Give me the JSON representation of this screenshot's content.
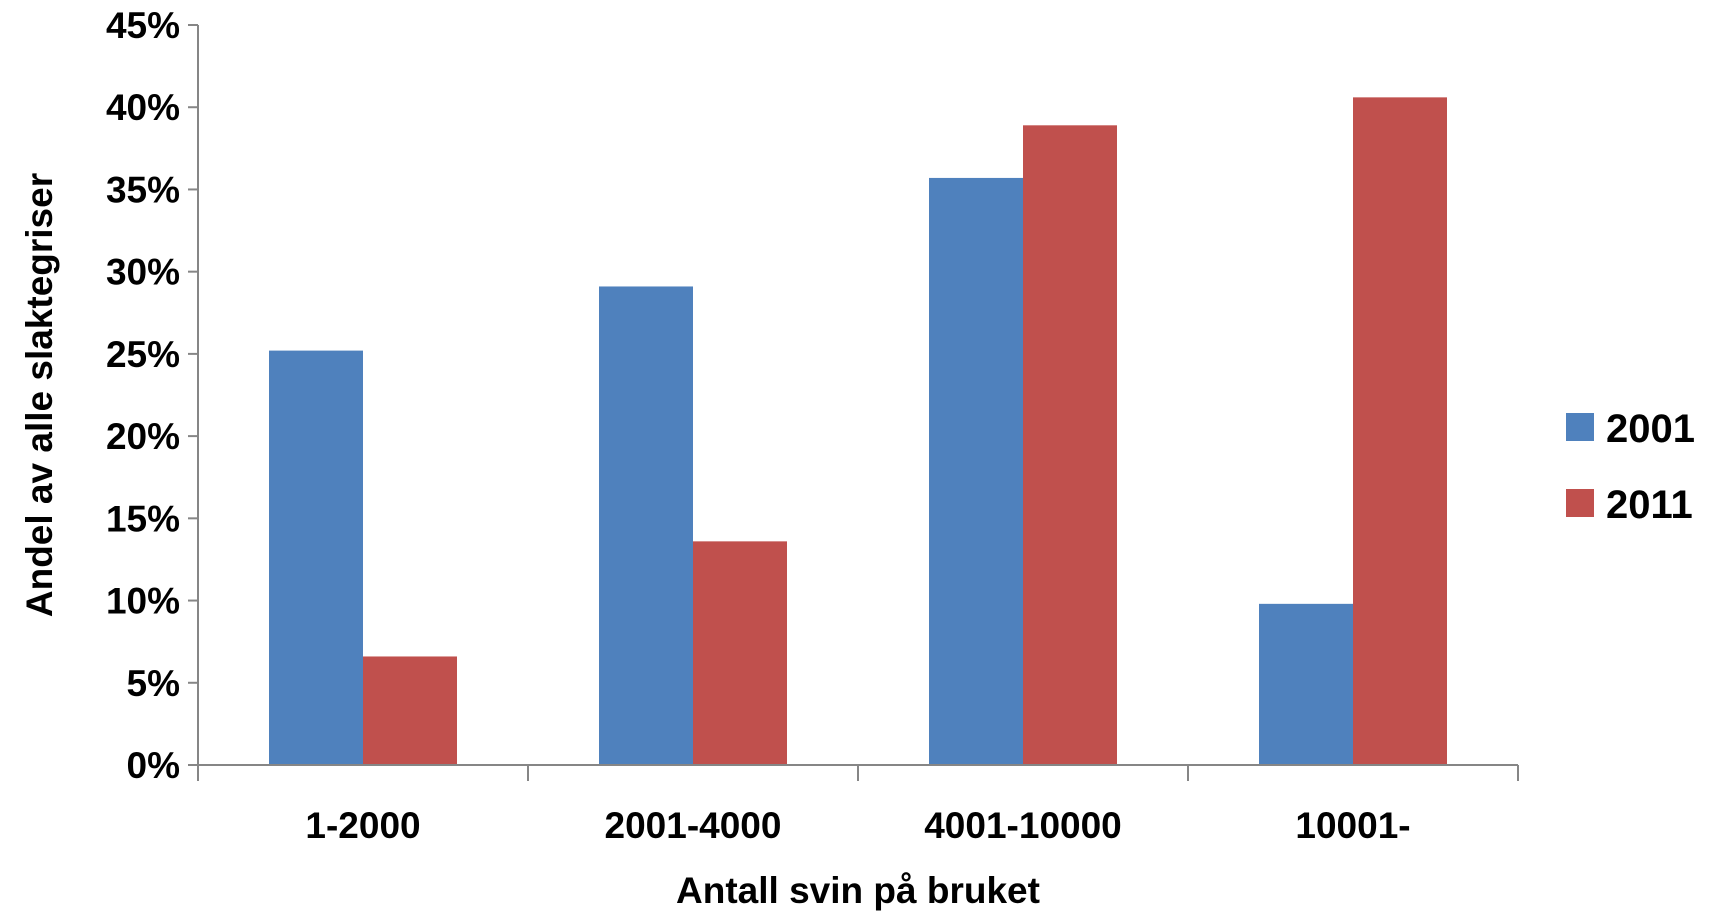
{
  "chart_data": {
    "type": "bar",
    "categories": [
      "1-2000",
      "2001-4000",
      "4001-10000",
      "10001-"
    ],
    "series": [
      {
        "name": "2001",
        "values": [
          25.2,
          29.1,
          35.7,
          9.8
        ],
        "color": "#4F81BD"
      },
      {
        "name": "2011",
        "values": [
          6.6,
          13.6,
          38.9,
          40.6
        ],
        "color": "#C0504D"
      }
    ],
    "yticks": [
      "0%",
      "5%",
      "10%",
      "15%",
      "20%",
      "25%",
      "30%",
      "35%",
      "40%",
      "45%"
    ],
    "ylim": [
      0,
      45
    ],
    "xlabel": "Antall svin på bruket",
    "ylabel": "Andel av alle slaktegriser",
    "grid": false,
    "legend_position": "right"
  }
}
